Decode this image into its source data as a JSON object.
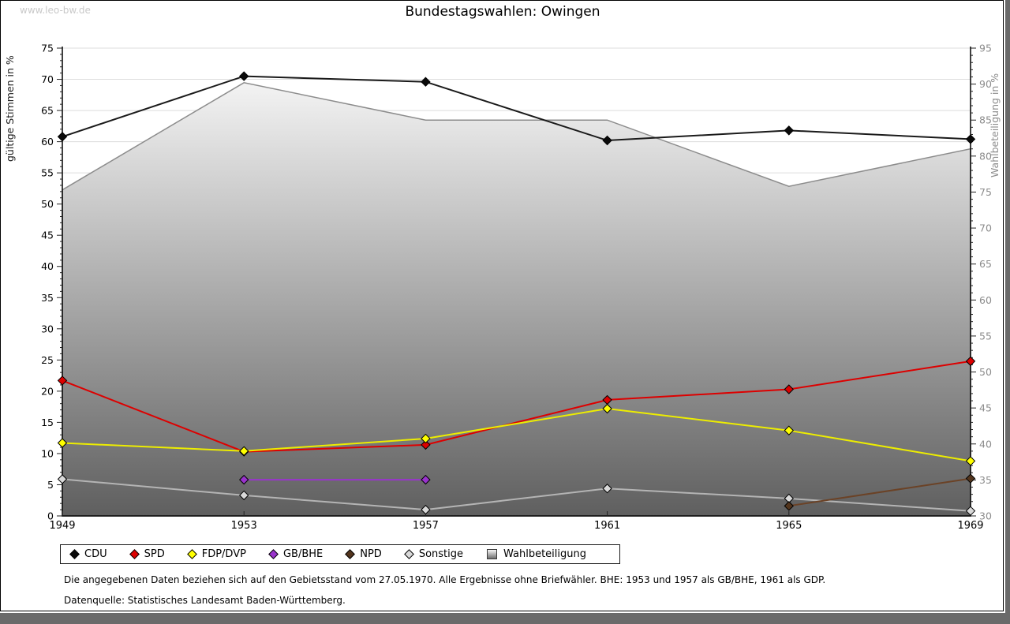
{
  "page": {
    "watermark": "www.leo-bw.de",
    "title": "Bundestagswahlen: Owingen",
    "footnote1": "Die angegebenen Daten beziehen sich auf den Gebietsstand vom 27.05.1970. Alle Ergebnisse ohne Briefwähler. BHE: 1953 und 1957 als GB/BHE, 1961 als GDP.",
    "footnote2": "Datenquelle: Statistisches Landesamt Baden-Württemberg."
  },
  "chart_data": {
    "type": "line",
    "title": "Bundestagswahlen: Owingen",
    "x": [
      1949,
      1953,
      1957,
      1961,
      1965,
      1969
    ],
    "left_axis": {
      "label": "gültige Stimmen in %",
      "min": 0,
      "max": 75,
      "step": 5,
      "minor_step": 1
    },
    "right_axis": {
      "label": "Wahlbeteiligung in %",
      "min": 30,
      "max": 95,
      "step": 5,
      "minor_step": 1
    },
    "grid": true,
    "series": [
      {
        "name": "Wahlbeteiligung",
        "kind": "area",
        "axis": "right",
        "line_color": "#8c8c8c",
        "fill_top": "#ffffff",
        "fill_bottom": "#5f5f5f",
        "values": [
          75.3,
          90.2,
          85.0,
          85.0,
          75.8,
          81.0
        ]
      },
      {
        "name": "Sonstige",
        "kind": "line",
        "axis": "left",
        "line_color": "#b4b4b4",
        "marker_color": "#d9d9d9",
        "values": [
          5.9,
          3.3,
          1.0,
          4.4,
          2.8,
          0.8
        ]
      },
      {
        "name": "GB/BHE",
        "kind": "line",
        "axis": "left",
        "line_color": "#9933cc",
        "marker_color": "#9933cc",
        "values": [
          null,
          5.8,
          5.8,
          null,
          null,
          null
        ]
      },
      {
        "name": "NPD",
        "kind": "line",
        "axis": "left",
        "line_color": "#6b4226",
        "marker_color": "#53351d",
        "values": [
          null,
          null,
          null,
          null,
          1.6,
          6.0
        ]
      },
      {
        "name": "SPD",
        "kind": "line",
        "axis": "left",
        "line_color": "#dd0000",
        "marker_color": "#dd0000",
        "values": [
          21.7,
          10.3,
          11.4,
          18.6,
          20.3,
          24.8
        ]
      },
      {
        "name": "FDP/DVP",
        "kind": "line",
        "axis": "left",
        "line_color": "#eded00",
        "marker_color": "#ffff00",
        "values": [
          11.7,
          10.4,
          12.4,
          17.2,
          13.7,
          8.8
        ]
      },
      {
        "name": "CDU",
        "kind": "line",
        "axis": "left",
        "line_color": "#1a1a1a",
        "marker_color": "#0a0a0a",
        "values": [
          60.8,
          70.5,
          69.6,
          60.2,
          61.8,
          60.4
        ]
      }
    ],
    "legend_position": "bottom"
  },
  "legend": {
    "items": [
      {
        "label": "CDU",
        "glyph": "diamond",
        "color": "#0a0a0a"
      },
      {
        "label": "SPD",
        "glyph": "diamond",
        "color": "#dd0000"
      },
      {
        "label": "FDP/DVP",
        "glyph": "diamond",
        "color": "#ffff00"
      },
      {
        "label": "GB/BHE",
        "glyph": "diamond",
        "color": "#9933cc"
      },
      {
        "label": "NPD",
        "glyph": "diamond",
        "color": "#53351d"
      },
      {
        "label": "Sonstige",
        "glyph": "diamond",
        "color": "#d9d9d9"
      },
      {
        "label": "Wahlbeteiligung",
        "glyph": "square",
        "color": "gradient"
      }
    ]
  },
  "colors": {
    "grid": "#dcdcdc",
    "axis": "#000000",
    "right_tick_label": "#8c8c8c",
    "frame_shadow": "#6a6a6a",
    "watermark": "#c9c9c9"
  }
}
